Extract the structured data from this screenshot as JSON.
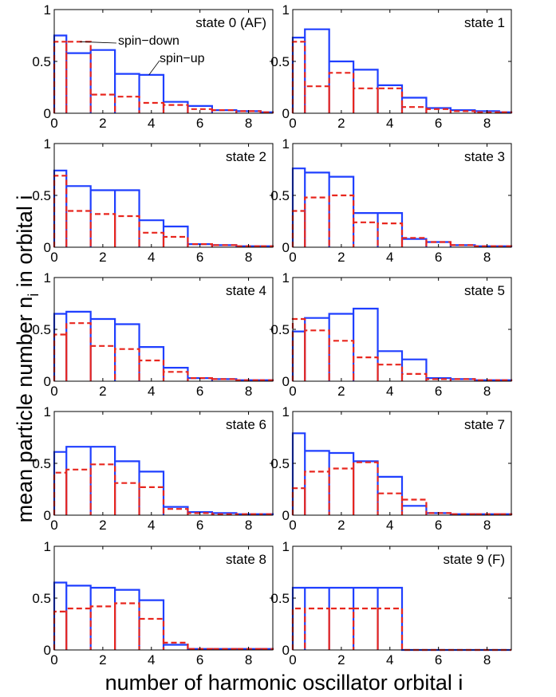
{
  "figure": {
    "ylabel_main": "mean particle number n",
    "ylabel_sub": "i",
    "ylabel_tail": " in orbital i",
    "xlabel": "number of harmonic oscillator orbital i"
  },
  "series_colors": {
    "spin_up": "#1f3fff",
    "spin_down": "#e8261e"
  },
  "chart_data": [
    {
      "type": "bar",
      "title": "state 0 (AF)",
      "xlim": [
        0,
        9
      ],
      "ylim": [
        0,
        1
      ],
      "xticks": [
        0,
        2,
        4,
        6,
        8
      ],
      "yticks": [
        0,
        0.5,
        1
      ],
      "ytick_labels": [
        "0",
        "0.5",
        "1"
      ],
      "categories": [
        0,
        1,
        2,
        3,
        4,
        5,
        6,
        7,
        8,
        9
      ],
      "series": [
        {
          "name": "spin-up",
          "style": "solid-blue",
          "values": [
            0.75,
            0.58,
            0.61,
            0.38,
            0.37,
            0.11,
            0.07,
            0.03,
            0.02,
            0.01
          ]
        },
        {
          "name": "spin-down",
          "style": "dashed-red",
          "values": [
            0.69,
            0.69,
            0.18,
            0.16,
            0.1,
            0.08,
            0.04,
            0.03,
            0.02,
            0.01
          ]
        }
      ],
      "annotations": [
        {
          "text": "spin−down",
          "series": "spin-down"
        },
        {
          "text": "spin−up",
          "series": "spin-up"
        }
      ]
    },
    {
      "type": "bar",
      "title": "state 1",
      "xlim": [
        0,
        9
      ],
      "ylim": [
        0,
        1
      ],
      "xticks": [
        0,
        2,
        4,
        6,
        8
      ],
      "yticks": [
        0,
        0.5,
        1
      ],
      "ytick_labels": [
        "0",
        "0.5",
        "1"
      ],
      "categories": [
        0,
        1,
        2,
        3,
        4,
        5,
        6,
        7,
        8,
        9
      ],
      "series": [
        {
          "style": "solid-blue",
          "values": [
            0.73,
            0.81,
            0.5,
            0.42,
            0.27,
            0.15,
            0.05,
            0.03,
            0.02,
            0.01
          ]
        },
        {
          "style": "dashed-red",
          "values": [
            0.69,
            0.26,
            0.39,
            0.24,
            0.24,
            0.06,
            0.04,
            0.02,
            0.01,
            0.01
          ]
        }
      ]
    },
    {
      "type": "bar",
      "title": "state 2",
      "xlim": [
        0,
        9
      ],
      "ylim": [
        0,
        1
      ],
      "xticks": [
        0,
        2,
        4,
        6,
        8
      ],
      "yticks": [
        0,
        0.5,
        1
      ],
      "ytick_labels": [
        "0",
        "0.5",
        "1"
      ],
      "categories": [
        0,
        1,
        2,
        3,
        4,
        5,
        6,
        7,
        8,
        9
      ],
      "series": [
        {
          "style": "solid-blue",
          "values": [
            0.74,
            0.59,
            0.55,
            0.55,
            0.26,
            0.2,
            0.03,
            0.02,
            0.01,
            0.01
          ]
        },
        {
          "style": "dashed-red",
          "values": [
            0.69,
            0.35,
            0.32,
            0.3,
            0.14,
            0.1,
            0.03,
            0.02,
            0.01,
            0.01
          ]
        }
      ]
    },
    {
      "type": "bar",
      "title": "state 3",
      "xlim": [
        0,
        9
      ],
      "ylim": [
        0,
        1
      ],
      "xticks": [
        0,
        2,
        4,
        6,
        8
      ],
      "yticks": [
        0,
        0.5,
        1
      ],
      "ytick_labels": [
        "0",
        "0.5",
        "1"
      ],
      "categories": [
        0,
        1,
        2,
        3,
        4,
        5,
        6,
        7,
        8,
        9
      ],
      "series": [
        {
          "style": "solid-blue",
          "values": [
            0.76,
            0.72,
            0.68,
            0.33,
            0.33,
            0.08,
            0.05,
            0.02,
            0.01,
            0.01
          ]
        },
        {
          "style": "dashed-red",
          "values": [
            0.35,
            0.48,
            0.5,
            0.24,
            0.23,
            0.09,
            0.05,
            0.02,
            0.01,
            0.01
          ]
        }
      ]
    },
    {
      "type": "bar",
      "title": "state 4",
      "xlim": [
        0,
        9
      ],
      "ylim": [
        0,
        1
      ],
      "xticks": [
        0,
        2,
        4,
        6,
        8
      ],
      "yticks": [
        0,
        0.5,
        1
      ],
      "ytick_labels": [
        "0",
        "0.5",
        "1"
      ],
      "categories": [
        0,
        1,
        2,
        3,
        4,
        5,
        6,
        7,
        8,
        9
      ],
      "series": [
        {
          "style": "solid-blue",
          "values": [
            0.65,
            0.67,
            0.6,
            0.55,
            0.33,
            0.13,
            0.03,
            0.02,
            0.01,
            0.01
          ]
        },
        {
          "style": "dashed-red",
          "values": [
            0.45,
            0.56,
            0.34,
            0.31,
            0.2,
            0.09,
            0.03,
            0.02,
            0.01,
            0.01
          ]
        }
      ]
    },
    {
      "type": "bar",
      "title": "state 5",
      "xlim": [
        0,
        9
      ],
      "ylim": [
        0,
        1
      ],
      "xticks": [
        0,
        2,
        4,
        6,
        8
      ],
      "yticks": [
        0,
        0.5,
        1
      ],
      "ytick_labels": [
        "0",
        "0.5",
        "1"
      ],
      "categories": [
        0,
        1,
        2,
        3,
        4,
        5,
        6,
        7,
        8,
        9
      ],
      "series": [
        {
          "style": "solid-blue",
          "values": [
            0.48,
            0.61,
            0.65,
            0.7,
            0.29,
            0.21,
            0.03,
            0.02,
            0.01,
            0.01
          ]
        },
        {
          "style": "dashed-red",
          "values": [
            0.6,
            0.49,
            0.39,
            0.23,
            0.16,
            0.07,
            0.02,
            0.02,
            0.01,
            0.01
          ]
        }
      ]
    },
    {
      "type": "bar",
      "title": "state 6",
      "xlim": [
        0,
        9
      ],
      "ylim": [
        0,
        1
      ],
      "xticks": [
        0,
        2,
        4,
        6,
        8
      ],
      "yticks": [
        0,
        0.5,
        1
      ],
      "ytick_labels": [
        "0",
        "0.5",
        "1"
      ],
      "categories": [
        0,
        1,
        2,
        3,
        4,
        5,
        6,
        7,
        8,
        9
      ],
      "series": [
        {
          "style": "solid-blue",
          "values": [
            0.61,
            0.66,
            0.66,
            0.52,
            0.42,
            0.08,
            0.03,
            0.02,
            0.01,
            0.01
          ]
        },
        {
          "style": "dashed-red",
          "values": [
            0.41,
            0.44,
            0.49,
            0.31,
            0.27,
            0.06,
            0.02,
            0.01,
            0.01,
            0.01
          ]
        }
      ]
    },
    {
      "type": "bar",
      "title": "state 7",
      "xlim": [
        0,
        9
      ],
      "ylim": [
        0,
        1
      ],
      "xticks": [
        0,
        2,
        4,
        6,
        8
      ],
      "yticks": [
        0,
        0.5,
        1
      ],
      "ytick_labels": [
        "0",
        "0.5",
        "1"
      ],
      "categories": [
        0,
        1,
        2,
        3,
        4,
        5,
        6,
        7,
        8,
        9
      ],
      "series": [
        {
          "style": "solid-blue",
          "values": [
            0.79,
            0.62,
            0.6,
            0.52,
            0.37,
            0.09,
            0.02,
            0.01,
            0.01,
            0.01
          ]
        },
        {
          "style": "dashed-red",
          "values": [
            0.26,
            0.42,
            0.45,
            0.51,
            0.21,
            0.15,
            0.02,
            0.01,
            0.01,
            0.01
          ]
        }
      ]
    },
    {
      "type": "bar",
      "title": "state 8",
      "xlim": [
        0,
        9
      ],
      "ylim": [
        0,
        1
      ],
      "xticks": [
        0,
        2,
        4,
        6,
        8
      ],
      "yticks": [
        0,
        0.5,
        1
      ],
      "ytick_labels": [
        "0",
        "0.5",
        "1"
      ],
      "categories": [
        0,
        1,
        2,
        3,
        4,
        5,
        6,
        7,
        8,
        9
      ],
      "series": [
        {
          "style": "solid-blue",
          "values": [
            0.65,
            0.62,
            0.6,
            0.58,
            0.48,
            0.05,
            0.01,
            0.01,
            0.01,
            0.01
          ]
        },
        {
          "style": "dashed-red",
          "values": [
            0.37,
            0.4,
            0.42,
            0.45,
            0.3,
            0.07,
            0.01,
            0.01,
            0.01,
            0.01
          ]
        }
      ]
    },
    {
      "type": "bar",
      "title": "state 9 (F)",
      "xlim": [
        0,
        9
      ],
      "ylim": [
        0,
        1
      ],
      "xticks": [
        0,
        2,
        4,
        6,
        8
      ],
      "yticks": [
        0,
        0.5,
        1
      ],
      "ytick_labels": [
        "0",
        "0.5",
        "1"
      ],
      "categories": [
        0,
        1,
        2,
        3,
        4,
        5,
        6,
        7,
        8,
        9
      ],
      "series": [
        {
          "style": "solid-blue",
          "values": [
            0.6,
            0.6,
            0.6,
            0.6,
            0.6,
            0,
            0,
            0,
            0,
            0
          ]
        },
        {
          "style": "dashed-red",
          "values": [
            0.4,
            0.4,
            0.4,
            0.4,
            0.4,
            0,
            0,
            0,
            0,
            0
          ]
        }
      ]
    }
  ]
}
